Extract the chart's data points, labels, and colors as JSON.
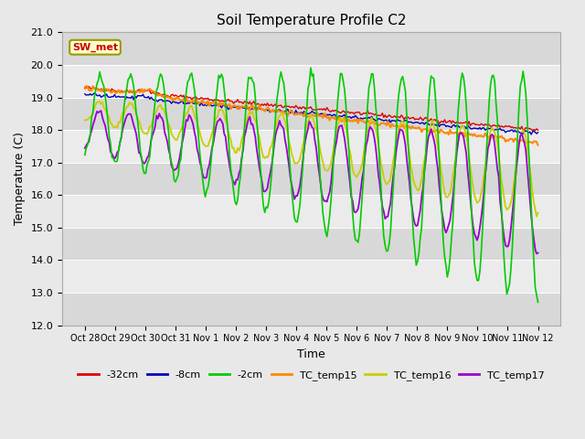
{
  "title": "Soil Temperature Profile C2",
  "xlabel": "Time",
  "ylabel": "Temperature (C)",
  "ylim": [
    12.0,
    21.0
  ],
  "yticks": [
    12.0,
    13.0,
    14.0,
    15.0,
    16.0,
    17.0,
    18.0,
    19.0,
    20.0,
    21.0
  ],
  "annotation_text": "SW_met",
  "annotation_bg": "#ffffcc",
  "annotation_border": "#999900",
  "annotation_text_color": "#cc0000",
  "fig_bg_color": "#e8e8e8",
  "plot_bg_light": "#ebebeb",
  "plot_bg_dark": "#d8d8d8",
  "colors": {
    "-32cm": "#dd0000",
    "-8cm": "#0000bb",
    "-2cm": "#00cc00",
    "TC_temp15": "#ff8800",
    "TC_temp16": "#cccc00",
    "TC_temp17": "#9900cc"
  },
  "legend_labels": [
    "-32cm",
    "-8cm",
    "-2cm",
    "TC_temp15",
    "TC_temp16",
    "TC_temp17"
  ],
  "x_tick_labels": [
    "Oct 28",
    "Oct 29",
    "Oct 30",
    "Oct 31",
    "Nov 1",
    "Nov 2",
    "Nov 3",
    "Nov 4",
    "Nov 5",
    "Nov 6",
    "Nov 7",
    "Nov 8",
    "Nov 9",
    "Nov 10",
    "Nov 11",
    "Nov 12"
  ],
  "num_points": 336
}
